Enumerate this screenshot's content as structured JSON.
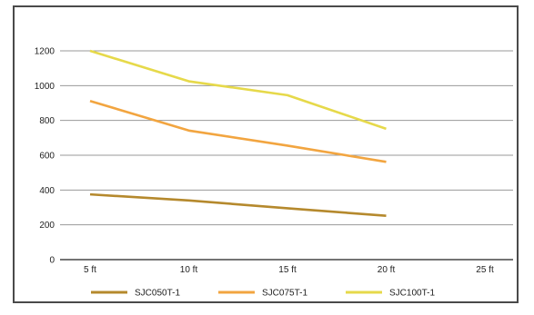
{
  "chart_data": {
    "type": "line",
    "title": "",
    "xlabel": "",
    "ylabel": "",
    "categories": [
      "5 ft",
      "10 ft",
      "15 ft",
      "20 ft",
      "25 ft"
    ],
    "ylim": [
      0,
      1200
    ],
    "yticks": [
      0,
      200,
      400,
      600,
      800,
      1000,
      1200
    ],
    "grid": "horizontal",
    "legend_position": "bottom",
    "series": [
      {
        "name": "SJC050T-1",
        "color": "#b5892d",
        "values": [
          375,
          340,
          295,
          252,
          null
        ]
      },
      {
        "name": "SJC075T-1",
        "color": "#f2a540",
        "values": [
          912,
          742,
          655,
          562,
          null
        ]
      },
      {
        "name": "SJC100T-1",
        "color": "#e6d94a",
        "values": [
          1200,
          1025,
          945,
          752,
          null
        ]
      }
    ]
  }
}
